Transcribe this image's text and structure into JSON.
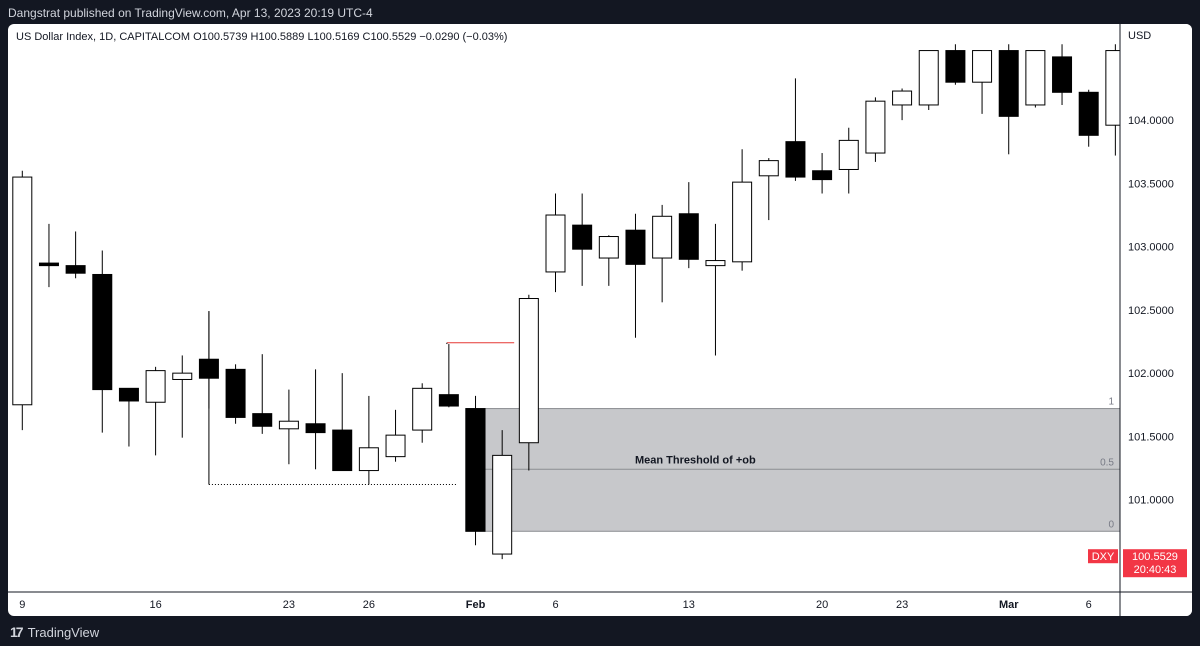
{
  "header": {
    "published": "Dangstrat published on TradingView.com, Apr 13, 2023 20:19 UTC-4"
  },
  "legend": {
    "text": "US Dollar Index, 1D, CAPITALCOM  O100.5739  H100.5889  L100.5169  C100.5529  −0.0290 (−0.03%)"
  },
  "footer": {
    "brand": "TradingView"
  },
  "colors": {
    "bull_fill": "#ffffff",
    "bear_fill": "#000000",
    "wick": "#000000",
    "zone_fill": "#c7c8cb",
    "zone_line": "#8b8d91",
    "price_tag": "#f23645",
    "red_line": "#e53935"
  },
  "chart_data": {
    "type": "candlestick",
    "currency_label": "USD",
    "y_ticks": [
      "104.0000",
      "103.5000",
      "103.0000",
      "102.5000",
      "102.0000",
      "101.5000",
      "101.0000"
    ],
    "x_ticks": [
      {
        "index": 0,
        "label": "9"
      },
      {
        "index": 5,
        "label": "16"
      },
      {
        "index": 10,
        "label": "23"
      },
      {
        "index": 13,
        "label": "26"
      },
      {
        "index": 17,
        "label": "Feb"
      },
      {
        "index": 20,
        "label": "6"
      },
      {
        "index": 25,
        "label": "13"
      },
      {
        "index": 30,
        "label": "20"
      },
      {
        "index": 33,
        "label": "23"
      },
      {
        "index": 37,
        "label": "Mar"
      },
      {
        "index": 40,
        "label": "6"
      }
    ],
    "candles": [
      {
        "o": 101.75,
        "h": 103.6,
        "l": 101.55,
        "c": 103.55
      },
      {
        "o": 102.87,
        "h": 103.18,
        "l": 102.68,
        "c": 102.85
      },
      {
        "o": 102.85,
        "h": 103.12,
        "l": 102.75,
        "c": 102.79
      },
      {
        "o": 102.78,
        "h": 102.97,
        "l": 101.53,
        "c": 101.87
      },
      {
        "o": 101.88,
        "h": 101.87,
        "l": 101.42,
        "c": 101.78
      },
      {
        "o": 101.77,
        "h": 102.05,
        "l": 101.35,
        "c": 102.02
      },
      {
        "o": 101.95,
        "h": 102.14,
        "l": 101.49,
        "c": 102.0
      },
      {
        "o": 102.11,
        "h": 102.49,
        "l": 101.72,
        "c": 101.96
      },
      {
        "o": 102.03,
        "h": 102.07,
        "l": 101.6,
        "c": 101.65
      },
      {
        "o": 101.68,
        "h": 102.15,
        "l": 101.52,
        "c": 101.58
      },
      {
        "o": 101.56,
        "h": 101.87,
        "l": 101.28,
        "c": 101.62
      },
      {
        "o": 101.6,
        "h": 102.03,
        "l": 101.24,
        "c": 101.53
      },
      {
        "o": 101.55,
        "h": 102.0,
        "l": 101.27,
        "c": 101.23
      },
      {
        "o": 101.23,
        "h": 101.82,
        "l": 101.12,
        "c": 101.41
      },
      {
        "o": 101.34,
        "h": 101.71,
        "l": 101.3,
        "c": 101.51
      },
      {
        "o": 101.55,
        "h": 101.92,
        "l": 101.45,
        "c": 101.88
      },
      {
        "o": 101.83,
        "h": 102.23,
        "l": 101.73,
        "c": 101.74
      },
      {
        "o": 101.72,
        "h": 101.82,
        "l": 100.64,
        "c": 100.75
      },
      {
        "o": 100.57,
        "h": 101.55,
        "l": 100.53,
        "c": 101.35
      },
      {
        "o": 101.45,
        "h": 102.62,
        "l": 101.23,
        "c": 102.59
      },
      {
        "o": 102.8,
        "h": 103.42,
        "l": 102.64,
        "c": 103.25
      },
      {
        "o": 103.17,
        "h": 103.42,
        "l": 102.69,
        "c": 102.98
      },
      {
        "o": 102.91,
        "h": 103.09,
        "l": 102.69,
        "c": 103.08
      },
      {
        "o": 103.13,
        "h": 103.26,
        "l": 102.28,
        "c": 102.86
      },
      {
        "o": 102.91,
        "h": 103.33,
        "l": 102.56,
        "c": 103.24
      },
      {
        "o": 103.26,
        "h": 103.51,
        "l": 102.83,
        "c": 102.9
      },
      {
        "o": 102.85,
        "h": 103.18,
        "l": 102.14,
        "c": 102.89
      },
      {
        "o": 102.88,
        "h": 103.77,
        "l": 102.81,
        "c": 103.51
      },
      {
        "o": 103.56,
        "h": 103.7,
        "l": 103.21,
        "c": 103.68
      },
      {
        "o": 103.83,
        "h": 104.33,
        "l": 103.52,
        "c": 103.55
      },
      {
        "o": 103.6,
        "h": 103.74,
        "l": 103.42,
        "c": 103.53
      },
      {
        "o": 103.61,
        "h": 103.94,
        "l": 103.42,
        "c": 103.84
      },
      {
        "o": 103.74,
        "h": 104.18,
        "l": 103.67,
        "c": 104.15
      },
      {
        "o": 104.12,
        "h": 104.25,
        "l": 104.0,
        "c": 104.23
      },
      {
        "o": 104.12,
        "h": 104.54,
        "l": 104.08,
        "c": 104.55
      },
      {
        "o": 104.55,
        "h": 104.6,
        "l": 104.28,
        "c": 104.3
      },
      {
        "o": 104.3,
        "h": 104.55,
        "l": 104.05,
        "c": 104.55
      },
      {
        "o": 104.55,
        "h": 104.6,
        "l": 103.73,
        "c": 104.03
      },
      {
        "o": 104.12,
        "h": 104.55,
        "l": 104.1,
        "c": 104.55
      },
      {
        "o": 104.5,
        "h": 104.6,
        "l": 104.12,
        "c": 104.22
      },
      {
        "o": 104.22,
        "h": 104.24,
        "l": 103.79,
        "c": 103.88
      },
      {
        "o": 103.96,
        "h": 104.6,
        "l": 103.72,
        "c": 104.55
      }
    ],
    "zone": {
      "top": 101.72,
      "mid": 101.24,
      "bottom": 100.75,
      "top_label": "1",
      "mid_label": "0.5",
      "bottom_label": "0",
      "title": "Mean Threshold of +ob",
      "start_index": 17
    },
    "swing_low_line": {
      "price": 101.12,
      "from_index": 7,
      "to_index": 16
    },
    "red_line": {
      "price": 102.24,
      "from_index": 16,
      "to_index": 18
    },
    "last_price": {
      "symbol": "DXY",
      "price": "100.5529",
      "countdown": "20:40:43",
      "value": 100.5529
    },
    "y_range": [
      100.27,
      104.76
    ]
  }
}
